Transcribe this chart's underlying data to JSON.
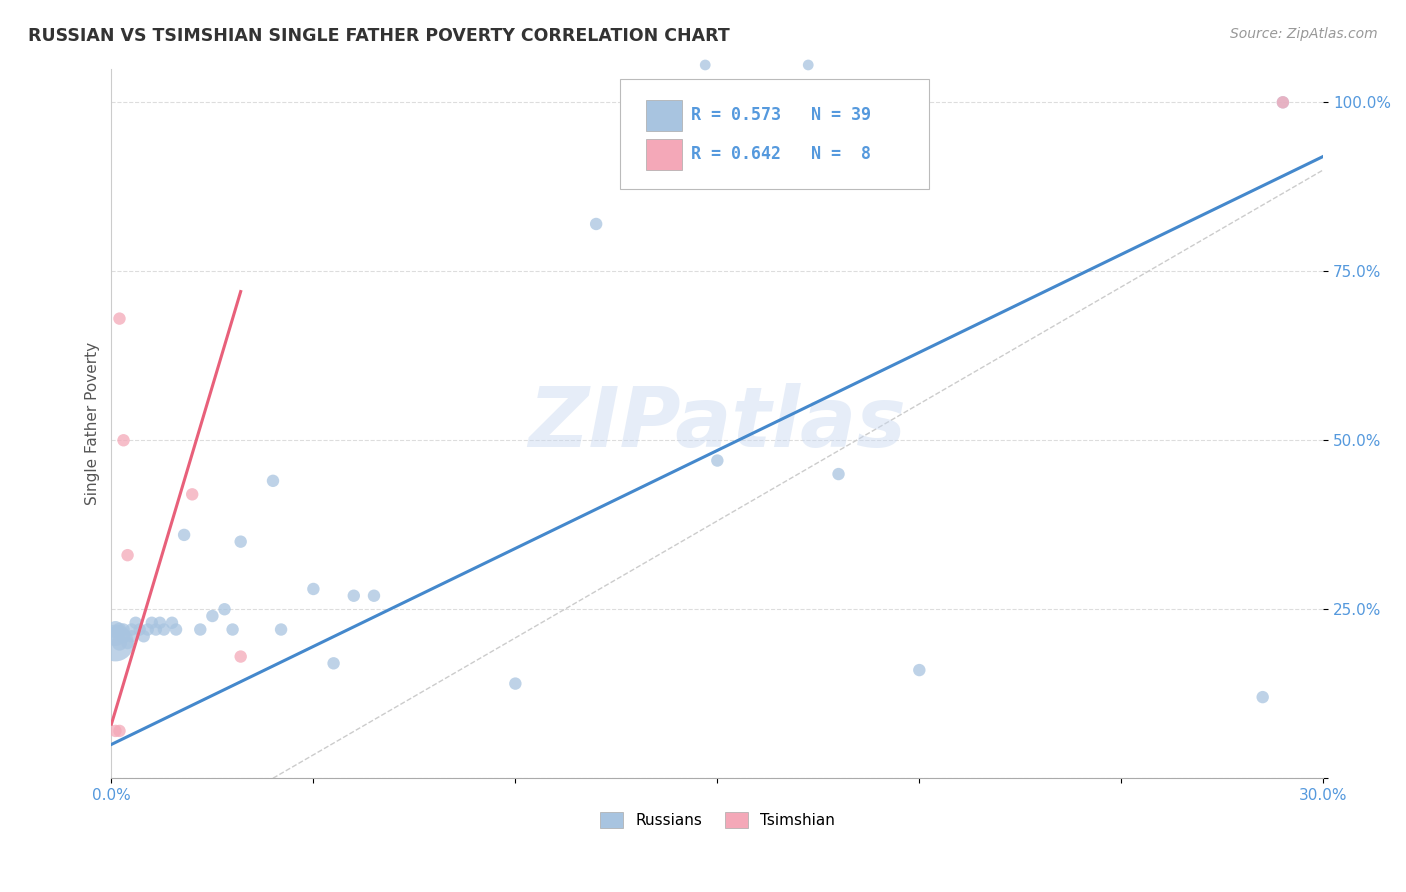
{
  "title": "RUSSIAN VS TSIMSHIAN SINGLE FATHER POVERTY CORRELATION CHART",
  "source": "Source: ZipAtlas.com",
  "ylabel": "Single Father Poverty",
  "xlim": [
    0.0,
    0.3
  ],
  "ylim": [
    0.0,
    1.05
  ],
  "xticks": [
    0.0,
    0.05,
    0.1,
    0.15,
    0.2,
    0.25,
    0.3
  ],
  "xticklabels": [
    "0.0%",
    "",
    "",
    "",
    "",
    "",
    "30.0%"
  ],
  "yticks": [
    0.0,
    0.25,
    0.5,
    0.75,
    1.0
  ],
  "yticklabels": [
    "",
    "25.0%",
    "50.0%",
    "75.0%",
    "100.0%"
  ],
  "russian_R": 0.573,
  "russian_N": 39,
  "tsimshian_R": 0.642,
  "tsimshian_N": 8,
  "russian_color": "#a8c4e0",
  "tsimshian_color": "#f4a8b8",
  "russian_line_color": "#4488cc",
  "tsimshian_line_color": "#e8607a",
  "ref_line_color": "#cccccc",
  "watermark": "ZIPatlas",
  "background_color": "#ffffff",
  "grid_color": "#dddddd",
  "tick_color": "#5599dd",
  "russian_x": [
    0.001,
    0.001,
    0.001,
    0.002,
    0.002,
    0.003,
    0.003,
    0.004,
    0.005,
    0.005,
    0.006,
    0.007,
    0.008,
    0.009,
    0.01,
    0.011,
    0.012,
    0.013,
    0.015,
    0.016,
    0.018,
    0.022,
    0.025,
    0.028,
    0.03,
    0.032,
    0.04,
    0.042,
    0.05,
    0.055,
    0.06,
    0.065,
    0.1,
    0.12,
    0.15,
    0.18,
    0.2,
    0.285,
    0.29
  ],
  "russian_y": [
    0.2,
    0.21,
    0.22,
    0.2,
    0.22,
    0.21,
    0.22,
    0.2,
    0.21,
    0.22,
    0.23,
    0.22,
    0.21,
    0.22,
    0.23,
    0.22,
    0.23,
    0.22,
    0.23,
    0.22,
    0.36,
    0.22,
    0.24,
    0.25,
    0.22,
    0.35,
    0.44,
    0.22,
    0.28,
    0.17,
    0.27,
    0.27,
    0.14,
    0.82,
    0.47,
    0.45,
    0.16,
    0.12,
    1.0
  ],
  "russian_sizes": [
    700,
    200,
    150,
    120,
    100,
    100,
    80,
    80,
    80,
    80,
    80,
    80,
    80,
    80,
    80,
    80,
    80,
    80,
    80,
    80,
    80,
    80,
    80,
    80,
    80,
    80,
    80,
    80,
    80,
    80,
    80,
    80,
    80,
    80,
    80,
    80,
    80,
    80,
    80
  ],
  "tsimshian_x": [
    0.001,
    0.002,
    0.002,
    0.003,
    0.004,
    0.02,
    0.032,
    0.29
  ],
  "tsimshian_y": [
    0.07,
    0.07,
    0.68,
    0.5,
    0.33,
    0.42,
    0.18,
    1.0
  ],
  "tsimshian_sizes": [
    80,
    80,
    80,
    80,
    80,
    80,
    80,
    80
  ],
  "blue_line_x0": 0.0,
  "blue_line_y0": 0.05,
  "blue_line_x1": 0.3,
  "blue_line_y1": 0.92,
  "pink_line_x0": 0.0,
  "pink_line_y0": 0.08,
  "pink_line_x1": 0.032,
  "pink_line_y1": 0.72,
  "ref_line_x0": 0.04,
  "ref_line_y0": 0.0,
  "ref_line_x1": 0.3,
  "ref_line_y1": 0.9
}
